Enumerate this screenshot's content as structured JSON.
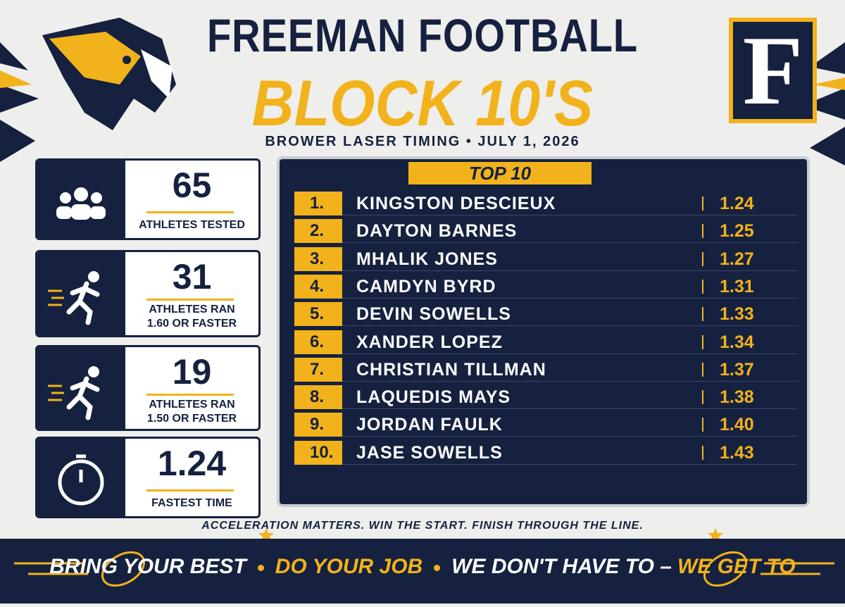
{
  "header": {
    "title": "FREEMAN FOOTBALL",
    "subtitle": "BLOCK 10'S",
    "event": "BROWER LASER TIMING • JULY 1, 2026",
    "logo_letter": "F"
  },
  "stats": [
    {
      "value": "65",
      "label": [
        "ATHLETES TESTED"
      ],
      "icon": "people"
    },
    {
      "value": "31",
      "label": [
        "ATHLETES RAN",
        "1.60 OR FASTER"
      ],
      "icon": "runner"
    },
    {
      "value": "19",
      "label": [
        "ATHLETES RAN",
        "1.50 OR FASTER"
      ],
      "icon": "runner"
    },
    {
      "value": "1.24",
      "label": [
        "FASTEST TIME"
      ],
      "icon": "watch"
    }
  ],
  "leaderboard": {
    "title": "TOP 10",
    "rows": [
      [
        "1.",
        "KINGSTON DESCIEUX",
        "1.24"
      ],
      [
        "2.",
        "DAYTON BARNES",
        "1.25"
      ],
      [
        "3.",
        "MHALIK JONES",
        "1.27"
      ],
      [
        "4.",
        "CAMDYN BYRD",
        "1.31"
      ],
      [
        "5.",
        "DEVIN SOWELLS",
        "1.33"
      ],
      [
        "6.",
        "XANDER LOPEZ",
        "1.34"
      ],
      [
        "7.",
        "CHRISTIAN TILLMAN",
        "1.37"
      ],
      [
        "8.",
        "LAQUEDIS MAYS",
        "1.38"
      ],
      [
        "9.",
        "JORDAN FAULK",
        "1.40"
      ],
      [
        "10.",
        "JASE SOWELLS",
        "1.43"
      ]
    ]
  },
  "tagline": "ACCELERATION MATTERS. WIN THE START. FINISH THROUGH THE LINE.",
  "footer": {
    "phrases": [
      "BRING YOUR BEST",
      "DO YOUR JOB",
      "WE DON'T HAVE TO –"
    ],
    "highlight": "WE GET TO"
  }
}
